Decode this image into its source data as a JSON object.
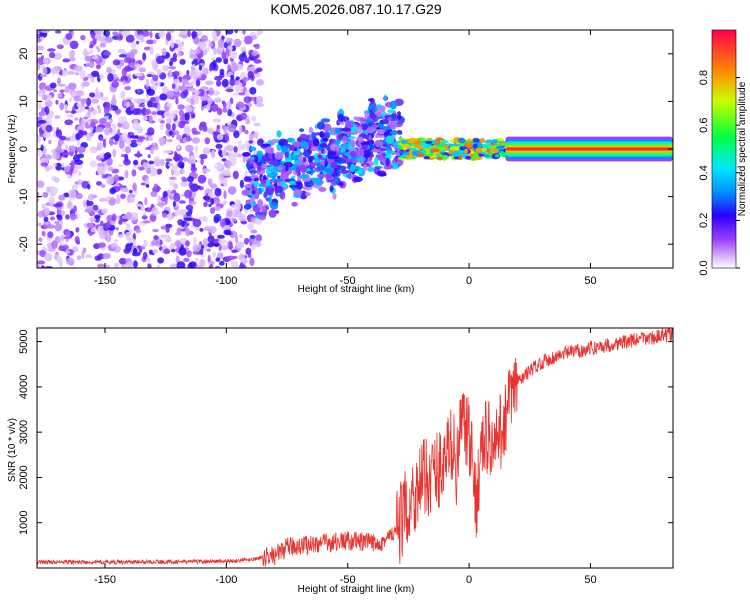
{
  "title": "KOM5.2026.087.10.17.G29",
  "chart_data": [
    {
      "type": "heatmap",
      "xlabel": "Height of straight line (km)",
      "ylabel": "Frequency (Hz)",
      "xlim": [
        -178,
        84
      ],
      "ylim": [
        -25,
        25
      ],
      "xticks": [
        -150,
        -100,
        -50,
        0,
        50
      ],
      "yticks": [
        -20,
        -10,
        0,
        10,
        20
      ],
      "colorbar": {
        "label": "Normalized spectral amplitude",
        "range": [
          0,
          1
        ],
        "ticks": [
          "0.0",
          "0.2",
          "0.4",
          "0.6",
          "0.8"
        ]
      },
      "regions": [
        {
          "x_range": [
            -178,
            -92
          ],
          "description_value": "broadband noise, amplitude ~0.05-0.25"
        },
        {
          "x_range": [
            -92,
            -28
          ],
          "center_freq_hz": [
            -6,
            -4,
            -2,
            1,
            3
          ],
          "amplitude_max": 0.45
        },
        {
          "x_range": [
            -28,
            15
          ],
          "center_freq_hz": 0,
          "amplitude_max": 0.9
        },
        {
          "x_range": [
            15,
            84
          ],
          "center_freq_hz": 0,
          "amplitude_max": 0.95
        }
      ]
    },
    {
      "type": "line",
      "xlabel": "Height of straight line (km)",
      "ylabel": "SNR (10 * v/v)",
      "xlim": [
        -178,
        84
      ],
      "ylim": [
        0,
        5300
      ],
      "xticks": [
        -150,
        -100,
        -50,
        0,
        50
      ],
      "yticks": [
        1000,
        2000,
        3000,
        4000,
        5000
      ],
      "color": "#e8322e",
      "series": [
        {
          "name": "SNR",
          "x": [
            -178,
            -150,
            -120,
            -100,
            -90,
            -80,
            -75,
            -70,
            -60,
            -50,
            -40,
            -35,
            -30,
            -25,
            -20,
            -15,
            -10,
            -7,
            -5,
            -3,
            0,
            3,
            5,
            8,
            10,
            13,
            15,
            18,
            20,
            25,
            30,
            40,
            50,
            60,
            70,
            84
          ],
          "y": [
            130,
            130,
            140,
            150,
            180,
            280,
            450,
            500,
            550,
            600,
            550,
            600,
            800,
            1400,
            1900,
            2100,
            2300,
            2800,
            2200,
            3300,
            2800,
            1500,
            2600,
            3000,
            2500,
            3000,
            3400,
            3800,
            4100,
            4350,
            4550,
            4750,
            4850,
            4950,
            5050,
            5150
          ]
        }
      ]
    }
  ]
}
